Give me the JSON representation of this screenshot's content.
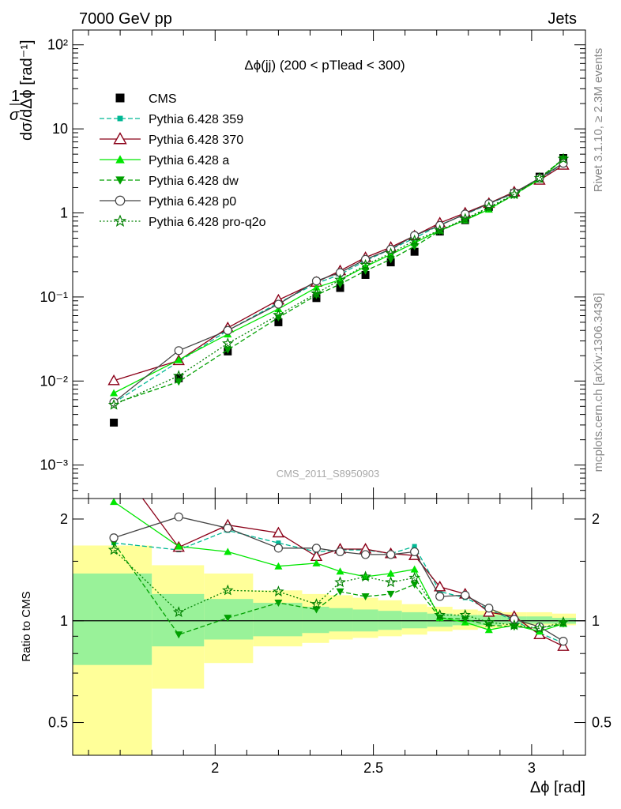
{
  "header": {
    "left": "7000 GeV pp",
    "right": "Jets"
  },
  "side_labels": {
    "rivet": "Rivet 3.1.10, ≥ 2.3M events",
    "mcplots": "mcplots.cern.ch [arXiv:1306.3436]"
  },
  "watermark": "CMS_2011_S8950903",
  "colors": {
    "cms": "#000000",
    "p359": "#00b894",
    "p370": "#8b0018",
    "a": "#00e600",
    "dw": "#00a000",
    "p0": "#444444",
    "proq2o": "#008000",
    "band_yellow": "#ffff99",
    "band_green": "#99f299"
  },
  "chart_data": [
    {
      "type": "scatter",
      "panel": "main",
      "title": "Δϕ(jj) (200 < pTlead <  300)",
      "ylabel": "1/σ dσ/dΔϕ [rad⁻¹]",
      "yscale": "log",
      "ylim": [
        0.0004,
        150
      ],
      "xlim": [
        1.55,
        3.17
      ],
      "ytick_labels": [
        "10⁻³",
        "10⁻²",
        "10⁻¹",
        "1",
        "10",
        "10²"
      ],
      "legend_position": "top-left",
      "x": [
        1.68,
        1.885,
        2.04,
        2.2,
        2.32,
        2.395,
        2.475,
        2.555,
        2.63,
        2.71,
        2.79,
        2.865,
        2.945,
        3.025,
        3.1
      ],
      "series": [
        {
          "name": "CMS",
          "key": "cms",
          "marker": "square",
          "line": "none",
          "values": [
            0.0032,
            0.0108,
            0.0225,
            0.05,
            0.097,
            0.128,
            0.183,
            0.258,
            0.345,
            0.6,
            0.82,
            1.18,
            1.72,
            2.7,
            4.5
          ]
        },
        {
          "name": "Pythia 6.428 359",
          "key": "p359",
          "marker": "smallsquare",
          "line": "dashed",
          "values": [
            0.0055,
            0.017,
            0.04,
            0.085,
            0.145,
            0.185,
            0.27,
            0.37,
            0.5,
            0.72,
            0.96,
            1.28,
            1.72,
            2.5,
            3.9
          ]
        },
        {
          "name": "Pythia 6.428 370",
          "key": "p370",
          "marker": "opentriangle",
          "line": "solid",
          "values": [
            0.0101,
            0.0175,
            0.043,
            0.092,
            0.15,
            0.205,
            0.295,
            0.39,
            0.535,
            0.76,
            1.0,
            1.3,
            1.78,
            2.45,
            3.7
          ]
        },
        {
          "name": "Pythia 6.428 a",
          "key": "a",
          "marker": "triangle",
          "line": "solid",
          "values": [
            0.0072,
            0.0178,
            0.036,
            0.072,
            0.13,
            0.16,
            0.23,
            0.32,
            0.44,
            0.62,
            0.82,
            1.1,
            1.66,
            2.5,
            4.4
          ]
        },
        {
          "name": "Pythia 6.428 dw",
          "key": "dw",
          "marker": "invtriangle",
          "line": "dashed",
          "values": [
            0.0054,
            0.0098,
            0.0235,
            0.057,
            0.105,
            0.142,
            0.205,
            0.28,
            0.4,
            0.61,
            0.83,
            1.14,
            1.62,
            2.6,
            4.4
          ]
        },
        {
          "name": "Pythia 6.428 p0",
          "key": "p0",
          "marker": "opencircle",
          "line": "solid",
          "values": [
            0.0056,
            0.023,
            0.04,
            0.082,
            0.155,
            0.195,
            0.28,
            0.37,
            0.54,
            0.71,
            0.97,
            1.29,
            1.74,
            2.6,
            3.9
          ]
        },
        {
          "name": "Pythia 6.428 pro-q2o",
          "key": "proq2o",
          "marker": "star",
          "line": "dotted",
          "values": [
            0.0052,
            0.0115,
            0.028,
            0.061,
            0.11,
            0.16,
            0.24,
            0.33,
            0.47,
            0.62,
            0.85,
            1.17,
            1.66,
            2.6,
            4.4
          ]
        }
      ]
    },
    {
      "type": "line",
      "panel": "ratio",
      "ylabel": "Ratio to CMS",
      "xlabel": "Δϕ [rad]",
      "ylim": [
        0.4,
        2.3
      ],
      "xlim": [
        1.55,
        3.17
      ],
      "xtick_labels": [
        "2",
        "2.5",
        "3"
      ],
      "ytick_labels": [
        "0.5",
        "1",
        "2"
      ],
      "x": [
        1.68,
        1.885,
        2.04,
        2.2,
        2.32,
        2.395,
        2.475,
        2.555,
        2.63,
        2.71,
        2.79,
        2.865,
        2.945,
        3.025,
        3.1
      ],
      "bins": [
        1.55,
        1.8,
        1.965,
        2.12,
        2.275,
        2.36,
        2.435,
        2.515,
        2.59,
        2.67,
        2.75,
        2.83,
        2.905,
        2.985,
        3.065,
        3.14
      ],
      "band_yellow": [
        [
          0.33,
          1.67
        ],
        [
          0.63,
          1.46
        ],
        [
          0.75,
          1.38
        ],
        [
          0.84,
          1.23
        ],
        [
          0.86,
          1.2
        ],
        [
          0.88,
          1.19
        ],
        [
          0.89,
          1.17
        ],
        [
          0.9,
          1.15
        ],
        [
          0.91,
          1.12
        ],
        [
          0.93,
          1.1
        ],
        [
          0.94,
          1.08
        ],
        [
          0.95,
          1.07
        ],
        [
          0.96,
          1.06
        ],
        [
          0.97,
          1.06
        ],
        [
          0.97,
          1.05
        ]
      ],
      "band_green": [
        [
          0.74,
          1.38
        ],
        [
          0.84,
          1.2
        ],
        [
          0.88,
          1.16
        ],
        [
          0.9,
          1.13
        ],
        [
          0.92,
          1.1
        ],
        [
          0.93,
          1.09
        ],
        [
          0.93,
          1.08
        ],
        [
          0.94,
          1.07
        ],
        [
          0.95,
          1.06
        ],
        [
          0.96,
          1.05
        ],
        [
          0.97,
          1.04
        ],
        [
          0.97,
          1.04
        ],
        [
          0.98,
          1.03
        ],
        [
          0.98,
          1.03
        ],
        [
          0.98,
          1.02
        ]
      ],
      "series": [
        {
          "name": "Pythia 6.428 359",
          "key": "p359",
          "values": [
            1.7,
            1.62,
            1.85,
            1.7,
            1.6,
            1.62,
            1.62,
            1.58,
            1.66,
            1.22,
            1.17,
            1.08,
            1.0,
            0.92,
            0.86
          ]
        },
        {
          "name": "Pythia 6.428 370",
          "key": "p370",
          "values": [
            3.0,
            1.65,
            1.92,
            1.82,
            1.55,
            1.63,
            1.63,
            1.58,
            1.56,
            1.26,
            1.2,
            1.06,
            1.03,
            0.91,
            0.84
          ]
        },
        {
          "name": "Pythia 6.428 a",
          "key": "a",
          "values": [
            2.25,
            1.66,
            1.6,
            1.45,
            1.48,
            1.4,
            1.35,
            1.38,
            1.42,
            1.02,
            0.99,
            0.94,
            0.97,
            0.93,
            0.98
          ]
        },
        {
          "name": "Pythia 6.428 dw",
          "key": "dw",
          "values": [
            1.7,
            0.91,
            1.02,
            1.13,
            1.08,
            1.22,
            1.18,
            1.2,
            1.28,
            1.02,
            1.01,
            0.97,
            0.96,
            0.95,
            0.98
          ]
        },
        {
          "name": "Pythia 6.428 p0",
          "key": "p0",
          "values": [
            1.76,
            2.03,
            1.88,
            1.64,
            1.64,
            1.6,
            1.57,
            1.57,
            1.6,
            1.18,
            1.19,
            1.09,
            1.01,
            0.96,
            0.87
          ]
        },
        {
          "name": "Pythia 6.428 pro-q2o",
          "key": "proq2o",
          "values": [
            1.62,
            1.06,
            1.23,
            1.22,
            1.12,
            1.3,
            1.35,
            1.3,
            1.34,
            1.04,
            1.04,
            0.99,
            0.97,
            0.95,
            0.99
          ]
        }
      ]
    }
  ]
}
